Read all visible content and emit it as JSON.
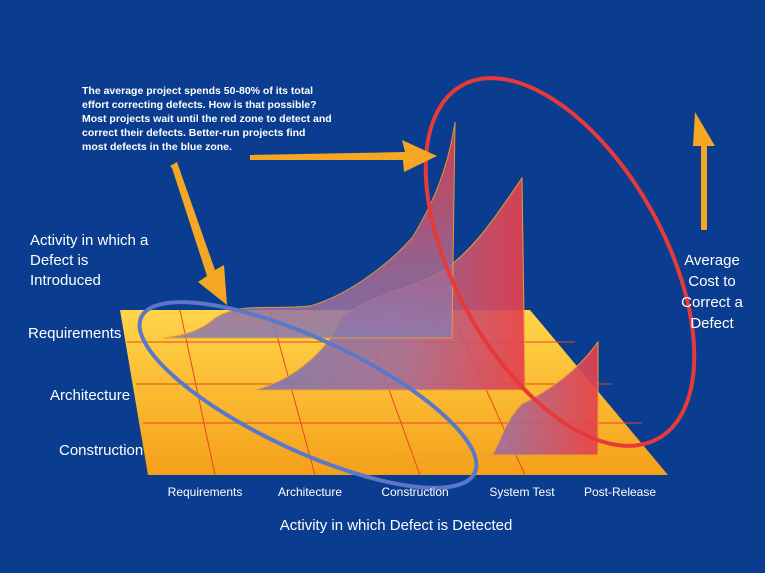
{
  "callout_text": "The average project spends 50-80% of its total effort correcting defects. How is that possible? Most projects wait until the red zone to detect and correct their defects. Better-run projects find most defects in the blue zone.",
  "y_axis_title": "Activity in which a Defect is Introduced",
  "x_axis_title": "Activity in which Defect is Detected",
  "z_axis_title": "Average Cost to Correct a Defect",
  "rows": [
    "Requirements",
    "Architecture",
    "Construction"
  ],
  "columns": [
    "Requirements",
    "Architecture",
    "Construction",
    "System Test",
    "Post-Release"
  ],
  "colors": {
    "background": "#0a3d8f",
    "floor_light": "#ffd54a",
    "floor_dark": "#f5a01a",
    "grid_line": "#e8452a",
    "arrow": "#f5a623",
    "red_zone": "#e63a3a",
    "blue_zone": "#5b78c8",
    "curve_base": "#7a78b4",
    "curve_peak": "#e8404a"
  },
  "icons": [
    "arrow-up-icon",
    "callout-arrow-icon"
  ]
}
